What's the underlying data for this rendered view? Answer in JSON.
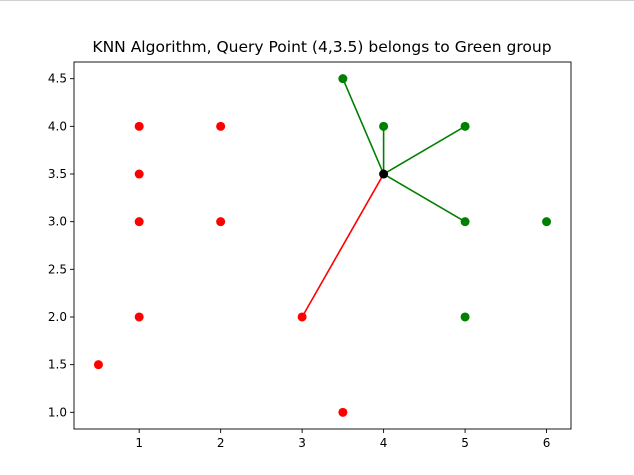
{
  "chart_data": {
    "type": "scatter",
    "title": "KNN Algorithm, Query Point (4,3.5) belongs to Green group",
    "xlabel": "",
    "ylabel": "",
    "xlim": [
      0.2,
      6.3
    ],
    "ylim": [
      0.825,
      4.675
    ],
    "xticks": [
      1,
      2,
      3,
      4,
      5,
      6
    ],
    "yticks": [
      1.0,
      1.5,
      2.0,
      2.5,
      3.0,
      3.5,
      4.0,
      4.5
    ],
    "grid": false,
    "series": [
      {
        "color": "#ff0000",
        "points": [
          [
            0.5,
            1.5
          ],
          [
            1,
            2
          ],
          [
            1,
            3
          ],
          [
            1,
            3.5
          ],
          [
            1,
            4
          ],
          [
            2,
            3
          ],
          [
            2,
            4
          ],
          [
            3,
            2
          ],
          [
            3.5,
            1
          ]
        ]
      },
      {
        "color": "#008000",
        "points": [
          [
            3.5,
            4.5
          ],
          [
            4,
            4
          ],
          [
            5,
            4
          ],
          [
            5,
            3
          ],
          [
            5,
            2
          ],
          [
            6,
            3
          ]
        ]
      }
    ],
    "query_point": {
      "x": 4,
      "y": 3.5,
      "color": "#000000"
    },
    "neighbor_lines": [
      {
        "to": [
          3.5,
          4.5
        ],
        "color": "#008000"
      },
      {
        "to": [
          4,
          4
        ],
        "color": "#008000"
      },
      {
        "to": [
          5,
          4
        ],
        "color": "#008000"
      },
      {
        "to": [
          5,
          3
        ],
        "color": "#008000"
      },
      {
        "to": [
          3,
          2
        ],
        "color": "#ff0000"
      }
    ]
  }
}
